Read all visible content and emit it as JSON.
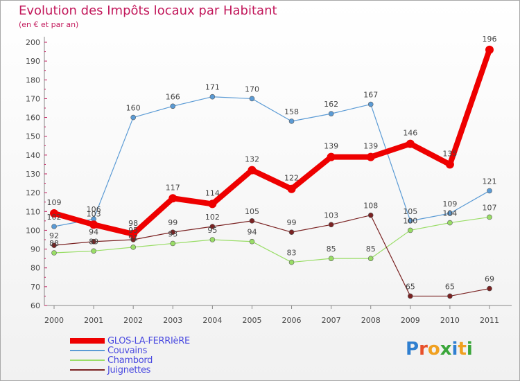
{
  "title": "Evolution des Impôts locaux par Habitant",
  "subtitle": "(en € et par an)",
  "logo_letters": [
    "P",
    "r",
    "o",
    "x",
    "i",
    "t",
    "i"
  ],
  "logo_colors": [
    "#2f7fd0",
    "#e8502a",
    "#f0a020",
    "#3aa63a",
    "#2f7fd0",
    "#f0a020",
    "#3aa63a"
  ],
  "chart_data": {
    "type": "line",
    "x": [
      "2000",
      "2001",
      "2002",
      "2003",
      "2004",
      "2005",
      "2006",
      "2007",
      "2008",
      "2009",
      "2010",
      "2011"
    ],
    "ylim": [
      60,
      200
    ],
    "yticks": [
      60,
      70,
      80,
      90,
      100,
      110,
      120,
      130,
      140,
      150,
      160,
      170,
      180,
      190,
      200
    ],
    "grid": false,
    "legend_position": "bottom-left",
    "series": [
      {
        "name": "GLOS-LA-FERRIèRE",
        "color": "#ee0000",
        "values": [
          109,
          103,
          98,
          117,
          114,
          132,
          122,
          139,
          139,
          146,
          135,
          196
        ],
        "labels": [
          "109",
          "103",
          "98",
          "117",
          "114",
          "132",
          "122",
          "139",
          "139",
          "146",
          "135",
          "196"
        ]
      },
      {
        "name": "Couvains",
        "color": "#5b9bd5",
        "values": [
          102,
          106,
          160,
          166,
          171,
          170,
          158,
          162,
          167,
          105,
          109,
          121
        ],
        "labels": [
          "102",
          "106",
          "160",
          "166",
          "171",
          "170",
          "158",
          "162",
          "167",
          "105",
          "109",
          "121"
        ]
      },
      {
        "name": "Chambord",
        "color": "#99dd66",
        "values": [
          88,
          89,
          91,
          93,
          95,
          94,
          83,
          85,
          85,
          100,
          104,
          107
        ],
        "labels": [
          "88",
          "89",
          "91",
          "93",
          "95",
          "94",
          "83",
          "85",
          "85",
          "100",
          "104",
          "107"
        ]
      },
      {
        "name": "Juignettes",
        "color": "#7a2222",
        "values": [
          92,
          94,
          95,
          99,
          102,
          105,
          99,
          103,
          108,
          65,
          65,
          69
        ],
        "labels": [
          "92",
          "94",
          "95",
          "99",
          "102",
          "105",
          "99",
          "103",
          "108",
          "65",
          "65",
          "69"
        ]
      }
    ]
  }
}
